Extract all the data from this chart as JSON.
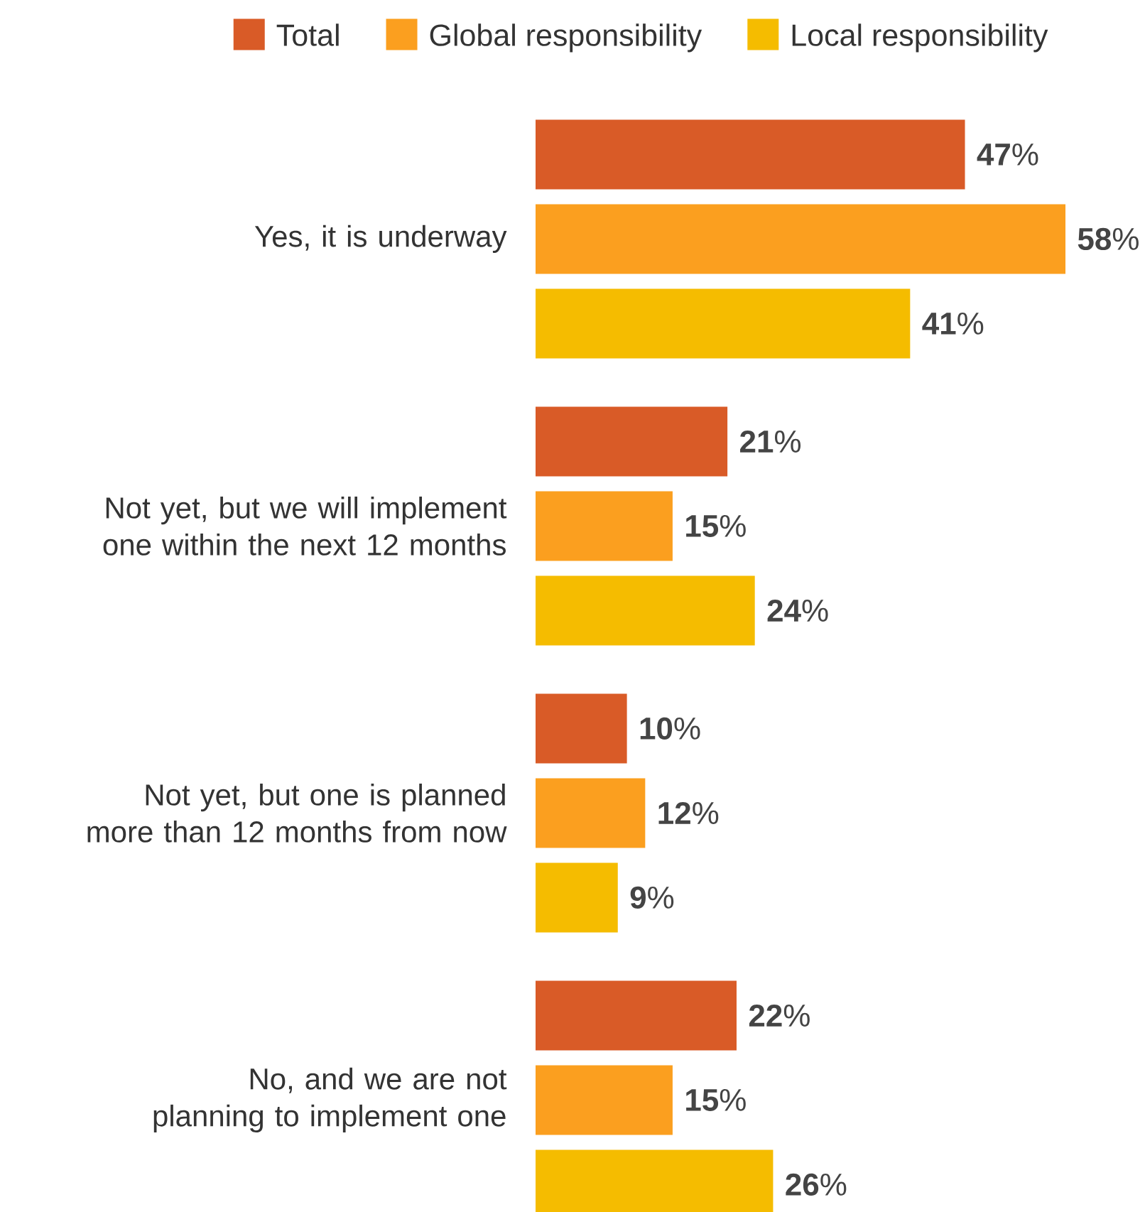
{
  "chart_data": {
    "type": "bar",
    "orientation": "horizontal",
    "legend": "top",
    "categories": [
      "Yes, it is underway",
      "Not yet, but we will implement one within the next 12 months",
      "Not yet, but one is planned more than 12 months from now",
      "No, and we are not planning to implement one"
    ],
    "series": [
      {
        "name": "Total",
        "color": "#d95b27",
        "values": [
          47,
          21,
          10,
          22
        ],
        "value_labels": [
          "**47**%",
          "**21**%",
          "**10**%",
          "**22**%"
        ]
      },
      {
        "name": "Global responsibility",
        "color": "#fb9f1f",
        "values": [
          58,
          15,
          12,
          15
        ],
        "value_labels": [
          "**58**%",
          "**15**%",
          "**12**%",
          "**15**%"
        ]
      },
      {
        "name": "Local responsibility",
        "color": "#f5bc00",
        "values": [
          41,
          24,
          9,
          26
        ],
        "value_labels": [
          "**41**%",
          "**24**%",
          "**9**%",
          "**26**%"
        ]
      }
    ]
  }
}
